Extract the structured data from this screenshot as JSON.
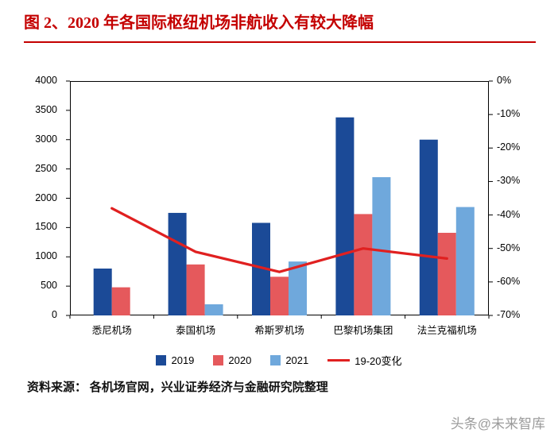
{
  "title": "图 2、2020 年各国际枢纽机场非航收入有较大降幅",
  "source_note": "资料来源： 各机场官网，兴业证券经济与金融研究院整理",
  "watermark": "头条@未来智库",
  "colors": {
    "title_red": "#c40000",
    "bar_2019": "#1b4a97",
    "bar_2020": "#e5595c",
    "bar_2021": "#6fa8dc",
    "line_red": "#e02020",
    "axis": "#000000"
  },
  "chart_data": {
    "type": "bar",
    "subtype": "grouped-bars-with-line",
    "categories": [
      "悉尼机场",
      "泰国机场",
      "希斯罗机场",
      "巴黎机场集团",
      "法兰克福机场"
    ],
    "series": [
      {
        "name": "2019",
        "type": "bar",
        "axis": "left",
        "color": "#1b4a97",
        "values": [
          800,
          1750,
          1580,
          3380,
          3000
        ]
      },
      {
        "name": "2020",
        "type": "bar",
        "axis": "left",
        "color": "#e5595c",
        "values": [
          480,
          870,
          660,
          1730,
          1410
        ]
      },
      {
        "name": "2021",
        "type": "bar",
        "axis": "left",
        "color": "#6fa8dc",
        "values": [
          null,
          190,
          920,
          2360,
          1850
        ]
      },
      {
        "name": "19-20变化",
        "type": "line",
        "axis": "right",
        "color": "#e02020",
        "values": [
          -38,
          -51,
          -57,
          -50,
          -53
        ]
      }
    ],
    "left_axis": {
      "min": 0,
      "max": 4000,
      "step": 500,
      "ticks": [
        4000,
        3500,
        3000,
        2500,
        2000,
        1500,
        1000,
        500,
        0
      ]
    },
    "right_axis": {
      "min": -70,
      "max": 0,
      "step": -10,
      "ticks": [
        0,
        -10,
        -20,
        -30,
        -40,
        -50,
        -60,
        -70
      ],
      "suffix": "%"
    },
    "legend_position": "bottom",
    "grid": false
  }
}
